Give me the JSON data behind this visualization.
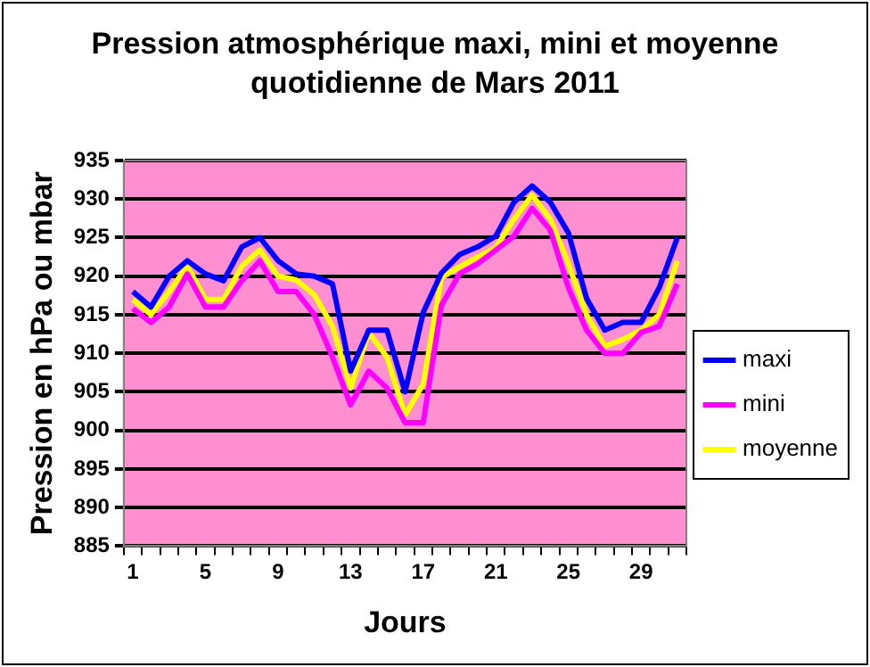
{
  "chart_data": {
    "type": "line",
    "title": "Pression atmosphérique maxi, mini et moyenne quotidienne de Mars 2011",
    "xlabel": "Jours",
    "ylabel": "Pression en hPa ou mbar",
    "categories": [
      "1",
      null,
      null,
      null,
      "5",
      null,
      null,
      null,
      "9",
      null,
      null,
      null,
      "13",
      null,
      null,
      null,
      "17",
      null,
      null,
      null,
      "21",
      null,
      null,
      null,
      "25",
      null,
      null,
      null,
      "29",
      null,
      null
    ],
    "series": [
      {
        "name": "maxi",
        "color": "#0000ff",
        "values": [
          918,
          916,
          920,
          922,
          920.3,
          919.4,
          923.8,
          925,
          922,
          920.3,
          920,
          919,
          907.7,
          913,
          913,
          905,
          915.3,
          920.4,
          922.8,
          923.8,
          925.2,
          929.6,
          931.7,
          929.6,
          925.6,
          917.1,
          913,
          914,
          914,
          918.5,
          925
        ]
      },
      {
        "name": "mini",
        "color": "#ff00ff",
        "values": [
          915.8,
          914,
          916,
          920.3,
          916,
          916,
          919.4,
          922,
          918,
          918,
          915,
          909.5,
          903.3,
          907.7,
          905.5,
          901,
          901,
          916.2,
          920.3,
          921.6,
          923.4,
          925.2,
          928.8,
          926,
          918.5,
          913,
          910,
          910,
          912.7,
          913.5,
          919
        ]
      },
      {
        "name": "moyenne",
        "color": "#ffff00",
        "values": [
          917,
          915,
          918,
          921.3,
          917,
          917,
          921.3,
          923.4,
          920,
          919.5,
          917.6,
          913.5,
          905.5,
          912.7,
          909.5,
          902,
          906,
          919.8,
          921.2,
          922.5,
          923.7,
          927.4,
          930.5,
          927.4,
          921.6,
          915,
          910.9,
          911.8,
          913,
          915,
          922
        ]
      }
    ],
    "ylim": [
      885,
      935
    ],
    "yticks": [
      885,
      890,
      895,
      900,
      905,
      910,
      915,
      920,
      925,
      930,
      935
    ],
    "grid": "y",
    "legend": "right",
    "marker": "none",
    "line_style": "solid"
  }
}
